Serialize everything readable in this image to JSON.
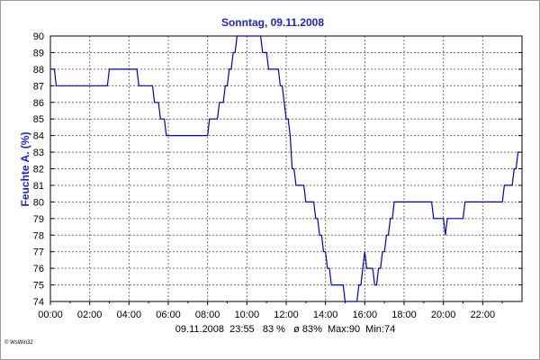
{
  "chart_data": {
    "type": "line",
    "title": "Sonntag, 09.11.2008",
    "ylabel": "Feuchte A. (%)",
    "xlabel": "",
    "xlim": [
      0,
      24
    ],
    "ylim": [
      74,
      90
    ],
    "grid": true,
    "line_color": "#0000c0",
    "x_tick_labels": [
      "00:00",
      "02:00",
      "04:00",
      "06:00",
      "08:00",
      "10:00",
      "12:00",
      "14:00",
      "16:00",
      "18:00",
      "20:00",
      "22:00"
    ],
    "y_tick_labels": [
      "74",
      "75",
      "76",
      "77",
      "78",
      "79",
      "80",
      "81",
      "82",
      "83",
      "84",
      "85",
      "86",
      "87",
      "88",
      "89",
      "90"
    ],
    "stats_line": "09.11.2008  23:55   83 %   ø 83%  Max:90  Min:74",
    "copyright": "© WsWin32",
    "series": [
      {
        "x": [
          0.0,
          0.2,
          0.3,
          2.9,
          3.0,
          4.4,
          4.5,
          5.2,
          5.3,
          5.5,
          5.6,
          5.8,
          5.9,
          6.0,
          6.1,
          8.0,
          8.1,
          8.5,
          8.6,
          8.8,
          8.9,
          9.0,
          9.1,
          9.2,
          9.3,
          9.4,
          9.5,
          9.6,
          9.7,
          9.8,
          9.9,
          10.7,
          10.8,
          11.0,
          11.1,
          11.5,
          11.6,
          11.7,
          11.8,
          12.0,
          12.1,
          12.2,
          12.3,
          12.4,
          12.5,
          12.6,
          12.7,
          12.9,
          13.0,
          13.4,
          13.5,
          13.6,
          13.7,
          13.8,
          13.9,
          14.0,
          14.1,
          14.2,
          14.3,
          14.5,
          14.6,
          14.9,
          15.0,
          15.6,
          15.7,
          15.8,
          15.9,
          16.0,
          16.1,
          16.4,
          16.5,
          16.6,
          16.7,
          16.8,
          16.9,
          17.0,
          17.1,
          17.2,
          17.3,
          17.4,
          17.5,
          17.6,
          19.4,
          19.5,
          20.0,
          20.1,
          20.2,
          20.3,
          21.0,
          21.1,
          23.0,
          23.1,
          23.5,
          23.6,
          23.7,
          23.8,
          23.9
        ],
        "y": [
          88,
          88,
          87,
          87,
          88,
          88,
          87,
          87,
          86,
          86,
          85,
          85,
          84,
          84,
          84,
          84,
          85,
          85,
          86,
          86,
          87,
          87,
          88,
          88,
          89,
          89,
          90,
          90,
          90,
          90,
          90,
          90,
          89,
          89,
          88,
          88,
          88,
          87,
          87,
          85,
          85,
          84,
          82,
          82,
          81,
          81,
          81,
          81,
          80,
          80,
          79,
          79,
          78,
          78,
          77,
          77,
          76,
          76,
          75,
          75,
          75,
          75,
          74,
          74,
          75,
          75,
          76,
          77,
          76,
          76,
          75,
          75,
          76,
          76,
          77,
          77,
          78,
          78,
          79,
          79,
          80,
          80,
          80,
          79,
          79,
          78,
          79,
          79,
          79,
          80,
          80,
          81,
          81,
          82,
          82,
          83,
          83
        ]
      }
    ]
  }
}
